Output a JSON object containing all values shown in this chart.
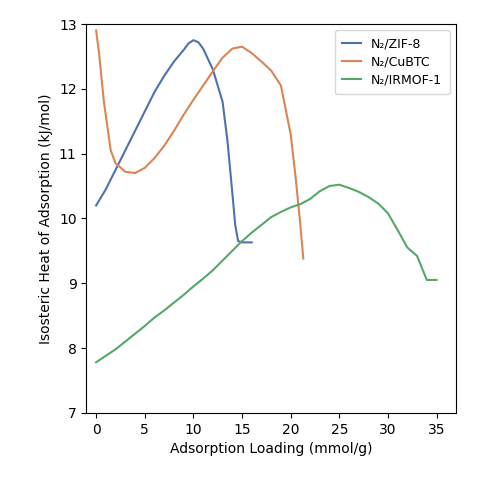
{
  "title": "",
  "xlabel": "Adsorption Loading (mmol/g)",
  "ylabel": "Isosteric Heat of Adsorption (kJ/mol)",
  "xlim": [
    -1,
    37
  ],
  "ylim": [
    7,
    13
  ],
  "yticks": [
    7,
    8,
    9,
    10,
    11,
    12,
    13
  ],
  "xticks": [
    0,
    5,
    10,
    15,
    20,
    25,
    30,
    35
  ],
  "legend_labels": [
    "N₂/ZIF-8",
    "N₂/CuBTC",
    "N₂/IRMOF-1"
  ],
  "colors": [
    "#4C72B0",
    "#DD8452",
    "#55A868"
  ],
  "zif8_x": [
    0.0,
    1.0,
    2.0,
    3.0,
    4.0,
    5.0,
    6.0,
    7.0,
    8.0,
    9.0,
    9.5,
    10.0,
    10.5,
    11.0,
    12.0,
    13.0,
    13.5,
    14.0,
    14.3,
    14.6,
    15.0,
    15.5,
    16.0
  ],
  "zif8_y": [
    10.2,
    10.45,
    10.75,
    11.05,
    11.35,
    11.65,
    11.95,
    12.2,
    12.42,
    12.6,
    12.7,
    12.75,
    12.72,
    12.62,
    12.3,
    11.8,
    11.2,
    10.4,
    9.9,
    9.65,
    9.63,
    9.63,
    9.63
  ],
  "cubtc_x": [
    0.0,
    0.3,
    0.8,
    1.5,
    2.0,
    3.0,
    4.0,
    5.0,
    6.0,
    7.0,
    8.0,
    9.0,
    10.0,
    11.0,
    12.0,
    13.0,
    14.0,
    15.0,
    16.0,
    17.0,
    18.0,
    19.0,
    20.0,
    20.5,
    21.0,
    21.3
  ],
  "cubtc_y": [
    12.9,
    12.55,
    11.8,
    11.05,
    10.85,
    10.72,
    10.7,
    10.78,
    10.93,
    11.12,
    11.35,
    11.6,
    11.83,
    12.05,
    12.27,
    12.48,
    12.62,
    12.65,
    12.55,
    12.42,
    12.28,
    12.05,
    11.3,
    10.65,
    9.9,
    9.38
  ],
  "irmof1_x": [
    0.0,
    1.0,
    2.0,
    3.0,
    4.0,
    5.0,
    6.0,
    7.0,
    8.0,
    9.0,
    10.0,
    11.0,
    12.0,
    13.0,
    14.0,
    15.0,
    16.0,
    17.0,
    18.0,
    19.0,
    20.0,
    21.0,
    22.0,
    23.0,
    24.0,
    25.0,
    26.0,
    27.0,
    28.0,
    29.0,
    30.0,
    31.0,
    32.0,
    33.0,
    34.0,
    35.0
  ],
  "irmof1_y": [
    7.78,
    7.88,
    7.98,
    8.1,
    8.22,
    8.34,
    8.47,
    8.58,
    8.7,
    8.82,
    8.95,
    9.07,
    9.2,
    9.35,
    9.5,
    9.65,
    9.78,
    9.9,
    10.02,
    10.1,
    10.17,
    10.22,
    10.3,
    10.42,
    10.5,
    10.52,
    10.47,
    10.41,
    10.33,
    10.23,
    10.08,
    9.82,
    9.55,
    9.42,
    9.05,
    9.05
  ]
}
